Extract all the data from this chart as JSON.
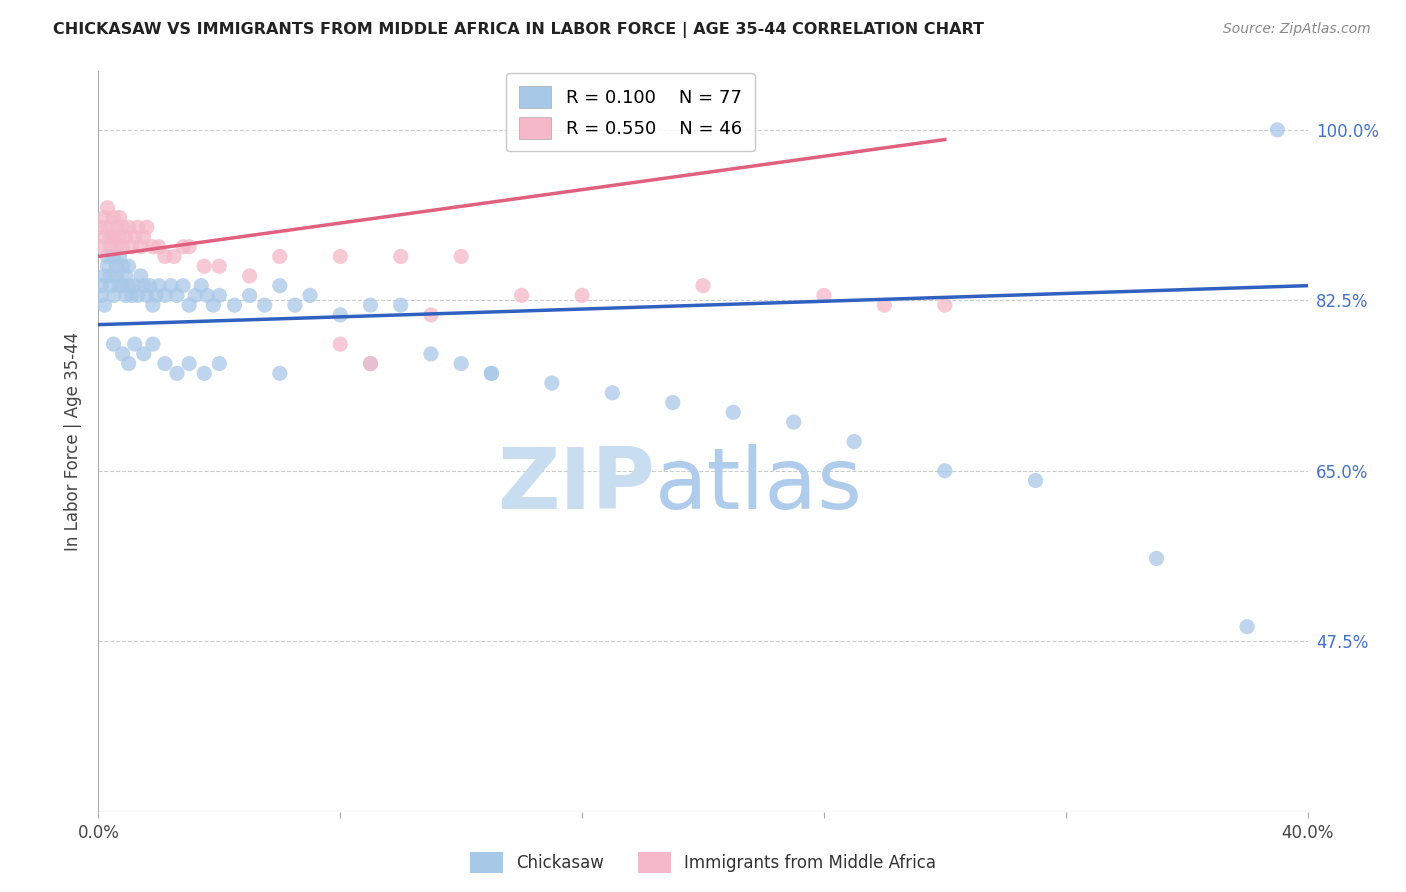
{
  "title": "CHICKASAW VS IMMIGRANTS FROM MIDDLE AFRICA IN LABOR FORCE | AGE 35-44 CORRELATION CHART",
  "source": "Source: ZipAtlas.com",
  "ylabel": "In Labor Force | Age 35-44",
  "ytick_labels": [
    "100.0%",
    "82.5%",
    "65.0%",
    "47.5%"
  ],
  "ytick_values": [
    1.0,
    0.825,
    0.65,
    0.475
  ],
  "xlim": [
    0.0,
    0.4
  ],
  "ylim": [
    0.3,
    1.06
  ],
  "legend_r_blue": "R = 0.100",
  "legend_n_blue": "N = 77",
  "legend_r_pink": "R = 0.550",
  "legend_n_pink": "N = 46",
  "legend_label_blue": "Chickasaw",
  "legend_label_pink": "Immigrants from Middle Africa",
  "blue_color": "#a8c8e8",
  "pink_color": "#f4b8c8",
  "blue_line_color": "#3060c0",
  "pink_line_color": "#e06080",
  "blue_scatter_x": [
    0.001,
    0.001,
    0.002,
    0.002,
    0.003,
    0.003,
    0.004,
    0.004,
    0.005,
    0.005,
    0.006,
    0.006,
    0.007,
    0.007,
    0.008,
    0.008,
    0.009,
    0.009,
    0.01,
    0.01,
    0.011,
    0.012,
    0.013,
    0.014,
    0.015,
    0.016,
    0.017,
    0.018,
    0.019,
    0.02,
    0.022,
    0.024,
    0.026,
    0.028,
    0.03,
    0.032,
    0.034,
    0.036,
    0.038,
    0.04,
    0.045,
    0.05,
    0.055,
    0.06,
    0.065,
    0.07,
    0.08,
    0.09,
    0.1,
    0.11,
    0.12,
    0.13,
    0.15,
    0.17,
    0.19,
    0.21,
    0.23,
    0.25,
    0.28,
    0.31,
    0.35,
    0.38,
    0.005,
    0.008,
    0.01,
    0.012,
    0.015,
    0.018,
    0.022,
    0.026,
    0.03,
    0.035,
    0.04,
    0.06,
    0.09,
    0.13,
    0.39
  ],
  "blue_scatter_y": [
    0.84,
    0.83,
    0.85,
    0.82,
    0.87,
    0.86,
    0.85,
    0.84,
    0.87,
    0.83,
    0.86,
    0.85,
    0.87,
    0.84,
    0.86,
    0.84,
    0.85,
    0.83,
    0.86,
    0.84,
    0.83,
    0.84,
    0.83,
    0.85,
    0.84,
    0.83,
    0.84,
    0.82,
    0.83,
    0.84,
    0.83,
    0.84,
    0.83,
    0.84,
    0.82,
    0.83,
    0.84,
    0.83,
    0.82,
    0.83,
    0.82,
    0.83,
    0.82,
    0.84,
    0.82,
    0.83,
    0.81,
    0.82,
    0.82,
    0.77,
    0.76,
    0.75,
    0.74,
    0.73,
    0.72,
    0.71,
    0.7,
    0.68,
    0.65,
    0.64,
    0.56,
    0.49,
    0.78,
    0.77,
    0.76,
    0.78,
    0.77,
    0.78,
    0.76,
    0.75,
    0.76,
    0.75,
    0.76,
    0.75,
    0.76,
    0.75,
    1.0
  ],
  "pink_scatter_x": [
    0.001,
    0.001,
    0.002,
    0.002,
    0.003,
    0.003,
    0.004,
    0.004,
    0.005,
    0.005,
    0.006,
    0.006,
    0.007,
    0.007,
    0.008,
    0.008,
    0.009,
    0.01,
    0.011,
    0.012,
    0.013,
    0.014,
    0.015,
    0.016,
    0.018,
    0.02,
    0.022,
    0.025,
    0.028,
    0.03,
    0.035,
    0.04,
    0.05,
    0.06,
    0.08,
    0.1,
    0.12,
    0.14,
    0.16,
    0.2,
    0.24,
    0.26,
    0.08,
    0.09,
    0.11,
    0.28
  ],
  "pink_scatter_y": [
    0.9,
    0.88,
    0.91,
    0.89,
    0.92,
    0.9,
    0.89,
    0.88,
    0.91,
    0.89,
    0.9,
    0.88,
    0.91,
    0.89,
    0.9,
    0.88,
    0.89,
    0.9,
    0.88,
    0.89,
    0.9,
    0.88,
    0.89,
    0.9,
    0.88,
    0.88,
    0.87,
    0.87,
    0.88,
    0.88,
    0.86,
    0.86,
    0.85,
    0.87,
    0.87,
    0.87,
    0.87,
    0.83,
    0.83,
    0.84,
    0.83,
    0.82,
    0.78,
    0.76,
    0.81,
    0.82
  ],
  "blue_trend_x": [
    0.0,
    0.4
  ],
  "blue_trend_y": [
    0.8,
    0.84
  ],
  "pink_trend_x": [
    0.0,
    0.28
  ],
  "pink_trend_y": [
    0.87,
    0.99
  ],
  "watermark_zip": "ZIP",
  "watermark_atlas": "atlas",
  "background_color": "#ffffff",
  "grid_color": "#cccccc"
}
